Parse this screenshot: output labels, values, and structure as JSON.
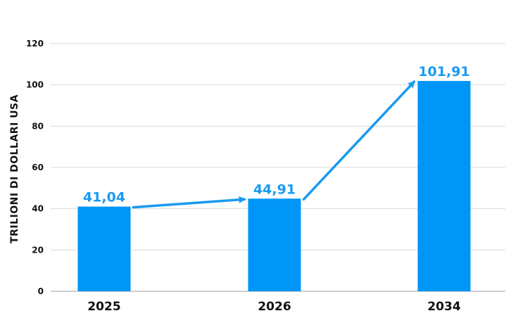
{
  "chart_data": {
    "type": "bar",
    "categories": [
      "2025",
      "2026",
      "2034"
    ],
    "values": [
      41.04,
      44.91,
      101.91
    ],
    "value_labels": [
      "41,04",
      "44,91",
      "101,91"
    ],
    "title": "",
    "xlabel": "",
    "ylabel": "TRILIONI DI DOLLARI USA",
    "ylim": [
      0,
      120
    ],
    "yticks": [
      "0",
      "20",
      "40",
      "60",
      "80",
      "100",
      "120"
    ],
    "grid": true,
    "legend": "none",
    "bar_color": "#0096f7",
    "label_color": "#1a9af0",
    "arrow_color": "#1a9af0",
    "arrows": [
      {
        "from": "2025",
        "to": "2026"
      },
      {
        "from": "2026",
        "to": "2034"
      }
    ]
  }
}
